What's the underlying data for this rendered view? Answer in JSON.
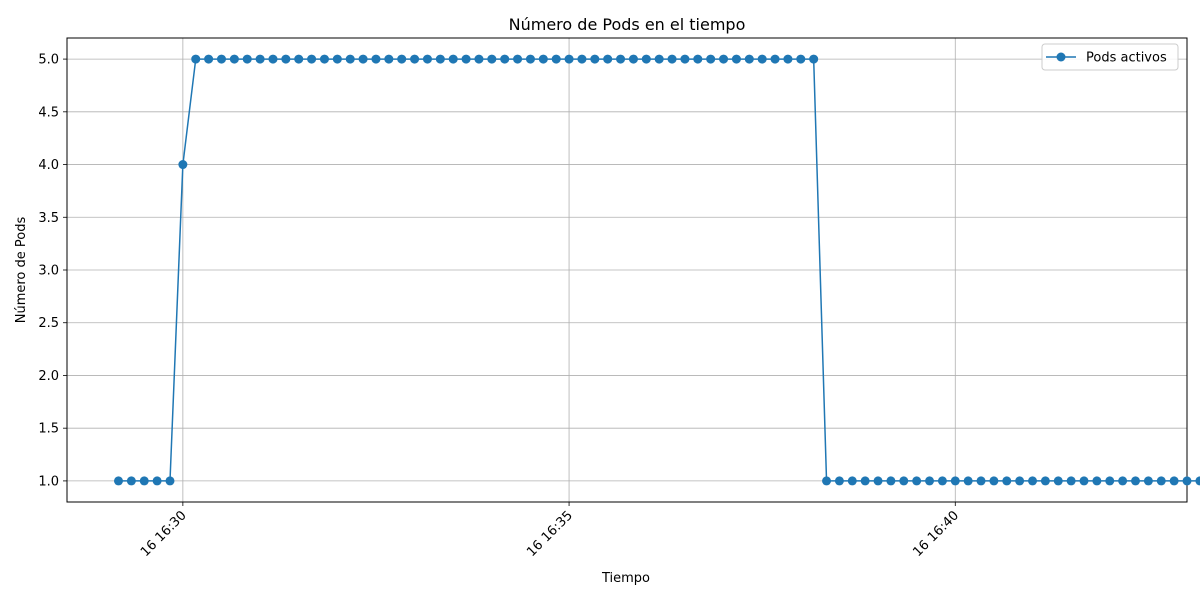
{
  "chart_data": {
    "type": "line",
    "title": "Número de Pods en el tiempo",
    "xlabel": "Tiempo",
    "ylabel": "Número de Pods",
    "x_axis": {
      "kind": "time",
      "range": [
        "16 16:28:30",
        "16 16:43:00"
      ],
      "ticks": [
        {
          "value": "16 16:30:00",
          "label": "16 16:30"
        },
        {
          "value": "16 16:35:00",
          "label": "16 16:35"
        },
        {
          "value": "16 16:40:00",
          "label": "16 16:40"
        }
      ]
    },
    "ylim": [
      0.8,
      5.2
    ],
    "yticks": [
      "1.0",
      "1.5",
      "2.0",
      "2.5",
      "3.0",
      "3.5",
      "4.0",
      "4.5",
      "5.0"
    ],
    "grid": true,
    "legend": {
      "position": "top-right",
      "entries": [
        "Pods activos"
      ]
    },
    "color": "#1f77b4",
    "series": [
      {
        "name": "Pods activos",
        "x_start": "16 16:29:10",
        "x_step_seconds": 10,
        "values": [
          1,
          1,
          1,
          1,
          1,
          4,
          5,
          5,
          5,
          5,
          5,
          5,
          5,
          5,
          5,
          5,
          5,
          5,
          5,
          5,
          5,
          5,
          5,
          5,
          5,
          5,
          5,
          5,
          5,
          5,
          5,
          5,
          5,
          5,
          5,
          5,
          5,
          5,
          5,
          5,
          5,
          5,
          5,
          5,
          5,
          5,
          5,
          5,
          5,
          5,
          5,
          5,
          5,
          5,
          5,
          1,
          1,
          1,
          1,
          1,
          1,
          1,
          1,
          1,
          1,
          1,
          1,
          1,
          1,
          1,
          1,
          1,
          1,
          1,
          1,
          1,
          1,
          1,
          1,
          1,
          1,
          1,
          1,
          1,
          1
        ]
      }
    ]
  }
}
